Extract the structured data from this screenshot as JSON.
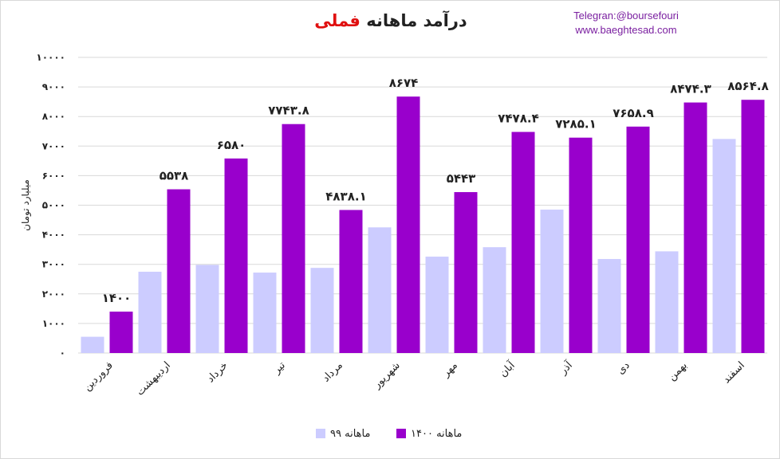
{
  "header": {
    "title_main": "درآمد ماهانه",
    "title_accent": "فملی",
    "telegram": "Telegran:@boursefouri",
    "website": "www.baeghtesad.com"
  },
  "colors": {
    "series_1400": "#9900cc",
    "series_99": "#ccccff",
    "accent": "#e01010",
    "link": "#7a1fa0"
  },
  "chart_data": {
    "type": "bar",
    "ylabel": "میلیارد تومان",
    "ylim": [
      0,
      10000
    ],
    "yticks": [
      0,
      1000,
      2000,
      3000,
      4000,
      5000,
      6000,
      7000,
      8000,
      9000,
      10000
    ],
    "ytick_labels": [
      "۰",
      "۱۰۰۰",
      "۲۰۰۰",
      "۳۰۰۰",
      "۴۰۰۰",
      "۵۰۰۰",
      "۶۰۰۰",
      "۷۰۰۰",
      "۸۰۰۰",
      "۹۰۰۰",
      "۱۰۰۰۰"
    ],
    "grid": true,
    "legend_position": "bottom",
    "categories": [
      "فروردین",
      "اردیبهشت",
      "خرداد",
      "تیر",
      "مرداد",
      "شهریور",
      "مهر",
      "آبان",
      "آذر",
      "دی",
      "بهمن",
      "اسفند"
    ],
    "series": [
      {
        "name": "ماهانه ۹۹",
        "values": [
          550,
          2750,
          2980,
          2720,
          2880,
          4250,
          3260,
          3580,
          4850,
          3180,
          3440,
          7240
        ],
        "data_labels": null
      },
      {
        "name": "ماهانه ۱۴۰۰",
        "values": [
          1400,
          5538,
          6580,
          7743.8,
          4838.1,
          8674,
          5443,
          7478.4,
          7285.1,
          7658.9,
          8474.3,
          8564.8
        ],
        "data_labels": [
          "۱۴۰۰",
          "۵۵۳۸",
          "۶۵۸۰",
          "۷۷۴۳.۸",
          "۴۸۳۸.۱",
          "۸۶۷۴",
          "۵۴۴۳",
          "۷۴۷۸.۴",
          "۷۲۸۵.۱",
          "۷۶۵۸.۹",
          "۸۴۷۴.۳",
          "۸۵۶۴.۸"
        ]
      }
    ]
  }
}
